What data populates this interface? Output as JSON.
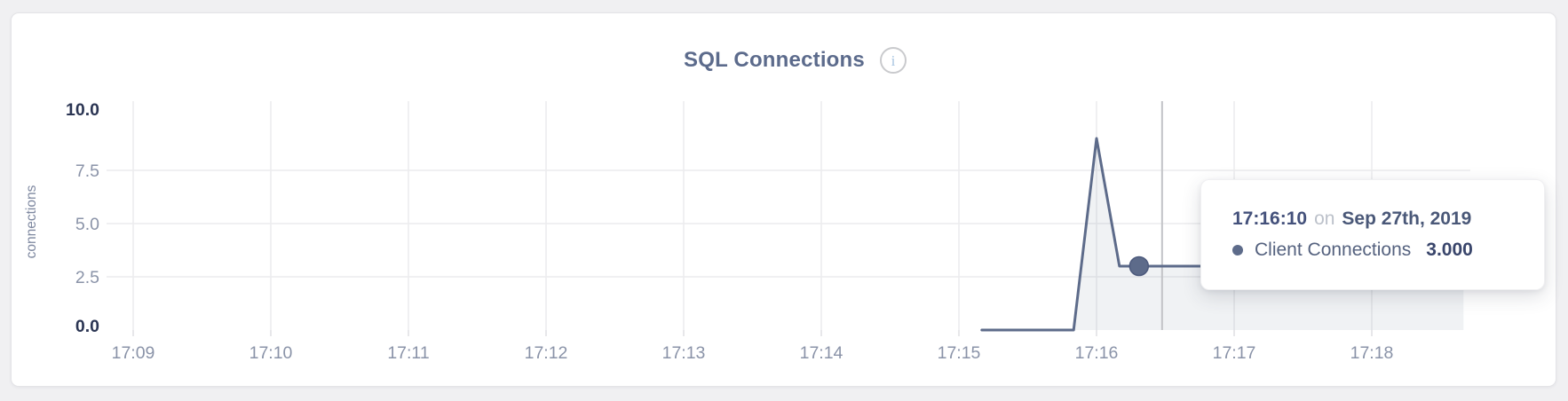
{
  "header": {
    "title": "SQL Connections",
    "info_glyph": "i"
  },
  "tooltip": {
    "time": "17:16:10",
    "conjunction": "on",
    "date": "Sep 27th, 2019",
    "series_label": "Client Connections",
    "value": "3.000"
  },
  "chart_data": {
    "type": "area",
    "title": "SQL Connections",
    "xlabel": "",
    "ylabel": "connections",
    "ylim": [
      0,
      10
    ],
    "grid": "on",
    "legend_position": "none",
    "yticks": [
      {
        "label": "0.0",
        "value": 0,
        "edge": true
      },
      {
        "label": "2.5",
        "value": 2.5,
        "edge": false
      },
      {
        "label": "5.0",
        "value": 5,
        "edge": false
      },
      {
        "label": "7.5",
        "value": 7.5,
        "edge": false
      },
      {
        "label": "10.0",
        "value": 10,
        "edge": true
      }
    ],
    "xticks": [
      "17:09",
      "17:10",
      "17:11",
      "17:12",
      "17:13",
      "17:14",
      "17:15",
      "17:16",
      "17:17",
      "17:18"
    ],
    "series": [
      {
        "name": "Client Connections",
        "color": "#5d6b8a",
        "fill": "rgba(93,107,138,0.09)",
        "points": [
          [
            "17:15:10",
            0
          ],
          [
            "17:15:20",
            0
          ],
          [
            "17:15:30",
            0
          ],
          [
            "17:15:40",
            0
          ],
          [
            "17:15:50",
            0
          ],
          [
            "17:16:00",
            9
          ],
          [
            "17:16:10",
            3
          ],
          [
            "17:16:20",
            3
          ],
          [
            "17:16:30",
            3
          ],
          [
            "17:16:40",
            3
          ],
          [
            "17:16:50",
            3
          ],
          [
            "17:17:00",
            3
          ],
          [
            "17:17:10",
            3
          ],
          [
            "17:17:20",
            3
          ],
          [
            "17:17:30",
            3
          ],
          [
            "17:17:40",
            3
          ],
          [
            "17:17:50",
            3
          ],
          [
            "17:18:00",
            3
          ],
          [
            "17:18:10",
            3
          ],
          [
            "17:18:20",
            3
          ],
          [
            "17:18:30",
            3
          ],
          [
            "17:18:40",
            3
          ]
        ]
      }
    ],
    "hover": {
      "time": "17:16:10",
      "series": "Client Connections",
      "value": 3
    }
  },
  "colors": {
    "page_bg": "#f0f0f2",
    "card_bg": "#ffffff",
    "title": "#5c6b8c",
    "line": "#5d6b8a",
    "grid": "#ececee",
    "crosshair": "#c2c3c7",
    "tick_dark": "#2b3553",
    "tick_light": "#8a93a8",
    "axis_title": "#7e88a0"
  }
}
